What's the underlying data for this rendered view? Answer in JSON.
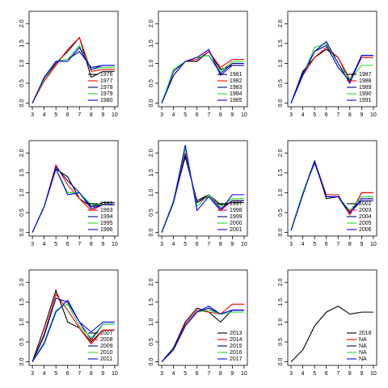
{
  "chart_data": [
    {
      "type": "line",
      "x": [
        3,
        4,
        5,
        6,
        7,
        8,
        9,
        10
      ],
      "xlim": [
        2.72,
        10.28
      ],
      "xticks": [
        3,
        4,
        5,
        6,
        7,
        8,
        9,
        10
      ],
      "ylim": [
        -0.09,
        2.31
      ],
      "yticks": [
        {
          "value": 0,
          "label": "0.0"
        },
        0.5,
        {
          "value": 1,
          "label": "1.0"
        },
        1.5,
        {
          "value": 2,
          "label": "2.0"
        }
      ],
      "legend": "bottomright",
      "series": [
        {
          "name": "1976",
          "color": "#000000",
          "values": [
            0,
            0.6,
            1.0,
            1.3,
            1.65,
            0.65,
            0.8,
            0.8
          ]
        },
        {
          "name": "1977",
          "color": "#ff0000",
          "values": [
            0,
            0.55,
            0.95,
            1.35,
            1.65,
            0.8,
            0.85,
            0.85
          ]
        },
        {
          "name": "1978",
          "color": "#00008b",
          "values": [
            0,
            0.65,
            1.05,
            1.1,
            1.3,
            0.9,
            0.95,
            0.95
          ]
        },
        {
          "name": "1979",
          "color": "#22dd22",
          "values": [
            0,
            0.6,
            1.05,
            1.1,
            1.45,
            0.85,
            0.9,
            0.9
          ]
        },
        {
          "name": "1980",
          "color": "#0000ff",
          "values": [
            0,
            0.65,
            1.05,
            1.05,
            1.4,
            0.85,
            0.95,
            0.95
          ]
        }
      ]
    },
    {
      "type": "line",
      "x": [
        3,
        4,
        5,
        6,
        7,
        8,
        9,
        10
      ],
      "xlim": [
        2.72,
        10.28
      ],
      "xticks": [
        3,
        4,
        5,
        6,
        7,
        8,
        9,
        10
      ],
      "ylim": [
        -0.09,
        2.31
      ],
      "yticks": [
        {
          "value": 0,
          "label": "0.0"
        },
        0.5,
        {
          "value": 1,
          "label": "1.0"
        },
        1.5,
        {
          "value": 2,
          "label": "2.0"
        }
      ],
      "legend": "bottomright",
      "series": [
        {
          "name": "1981",
          "color": "#000000",
          "values": [
            0,
            0.7,
            1.05,
            1.05,
            1.3,
            0.85,
            0.95,
            0.95
          ]
        },
        {
          "name": "1982",
          "color": "#ff0000",
          "values": [
            0,
            0.7,
            1.05,
            1.1,
            1.3,
            0.9,
            1.1,
            1.1
          ]
        },
        {
          "name": "1983",
          "color": "#00008b",
          "values": [
            0,
            0.8,
            1.05,
            1.15,
            1.2,
            0.75,
            1.0,
            1.0
          ]
        },
        {
          "name": "1984",
          "color": "#22dd22",
          "values": [
            0,
            0.85,
            1.05,
            1.15,
            1.2,
            0.8,
            1.05,
            1.05
          ]
        },
        {
          "name": "1985",
          "color": "#0000ff",
          "values": [
            0,
            0.7,
            1.05,
            1.15,
            1.35,
            0.7,
            0.95,
            0.95
          ]
        }
      ]
    },
    {
      "type": "line",
      "x": [
        3,
        4,
        5,
        6,
        7,
        8,
        9,
        10
      ],
      "xlim": [
        2.72,
        10.28
      ],
      "xticks": [
        3,
        4,
        5,
        6,
        7,
        8,
        9,
        10
      ],
      "ylim": [
        -0.09,
        2.31
      ],
      "yticks": [
        {
          "value": 0,
          "label": "0.0"
        },
        0.5,
        {
          "value": 1,
          "label": "1.0"
        },
        1.5,
        {
          "value": 2,
          "label": "2.0"
        }
      ],
      "legend": "bottomright",
      "series": [
        {
          "name": "1987",
          "color": "#000000",
          "values": [
            0,
            0.8,
            1.15,
            1.35,
            1.15,
            0.55,
            1.15,
            1.15
          ]
        },
        {
          "name": "1988",
          "color": "#ff0000",
          "values": [
            0,
            0.7,
            1.15,
            1.4,
            1.15,
            0.6,
            1.15,
            1.15
          ]
        },
        {
          "name": "1989",
          "color": "#00008b",
          "values": [
            0,
            0.75,
            1.3,
            1.45,
            0.9,
            0.55,
            1.2,
            1.2
          ]
        },
        {
          "name": "1990",
          "color": "#22dd22",
          "values": [
            0,
            0.7,
            1.4,
            1.5,
            1.0,
            0.6,
            0.95,
            0.95
          ]
        },
        {
          "name": "1991",
          "color": "#0000ff",
          "values": [
            0,
            0.7,
            1.3,
            1.55,
            1.0,
            0.5,
            1.2,
            1.2
          ]
        }
      ]
    },
    {
      "type": "line",
      "x": [
        3,
        4,
        5,
        6,
        7,
        8,
        9,
        10
      ],
      "xlim": [
        2.72,
        10.28
      ],
      "xticks": [
        3,
        4,
        5,
        6,
        7,
        8,
        9,
        10
      ],
      "ylim": [
        -0.09,
        2.31
      ],
      "yticks": [
        {
          "value": 0,
          "label": "0.0"
        },
        0.5,
        {
          "value": 1,
          "label": "1.0"
        },
        1.5,
        {
          "value": 2,
          "label": "2.0"
        }
      ],
      "legend": "bottomright",
      "series": [
        {
          "name": "1992",
          "color": "#000000",
          "values": [
            0,
            0.65,
            1.6,
            1.4,
            0.85,
            0.65,
            0.75,
            0.75
          ]
        },
        {
          "name": "1993",
          "color": "#ff0000",
          "values": [
            0,
            0.65,
            1.7,
            1.2,
            0.85,
            0.55,
            0.7,
            0.7
          ]
        },
        {
          "name": "1994",
          "color": "#00008b",
          "values": [
            0,
            0.65,
            1.65,
            1.3,
            1.0,
            0.65,
            0.7,
            0.7
          ]
        },
        {
          "name": "1995",
          "color": "#22dd22",
          "values": [
            0,
            0.65,
            1.6,
            1.0,
            1.0,
            0.7,
            0.7,
            0.7
          ]
        },
        {
          "name": "1996",
          "color": "#0000ff",
          "values": [
            0,
            0.65,
            1.6,
            0.95,
            1.0,
            0.6,
            0.7,
            0.7
          ]
        }
      ]
    },
    {
      "type": "line",
      "x": [
        3,
        4,
        5,
        6,
        7,
        8,
        9,
        10
      ],
      "xlim": [
        2.72,
        10.28
      ],
      "xticks": [
        3,
        4,
        5,
        6,
        7,
        8,
        9,
        10
      ],
      "ylim": [
        -0.09,
        2.31
      ],
      "yticks": [
        {
          "value": 0,
          "label": "0.0"
        },
        0.5,
        {
          "value": 1,
          "label": "1.0"
        },
        1.5,
        {
          "value": 2,
          "label": "2.0"
        }
      ],
      "legend": "bottomright",
      "series": [
        {
          "name": "1997",
          "color": "#000000",
          "values": [
            0,
            0.8,
            1.9,
            0.8,
            0.95,
            0.7,
            0.75,
            0.75
          ]
        },
        {
          "name": "1998",
          "color": "#ff0000",
          "values": [
            0,
            0.8,
            2.0,
            0.75,
            0.9,
            0.55,
            0.8,
            0.8
          ]
        },
        {
          "name": "1999",
          "color": "#00008b",
          "values": [
            0,
            0.75,
            1.95,
            0.75,
            0.95,
            0.6,
            0.8,
            0.8
          ]
        },
        {
          "name": "2000",
          "color": "#22dd22",
          "values": [
            0,
            0.8,
            2.1,
            0.65,
            0.95,
            0.65,
            0.85,
            0.85
          ]
        },
        {
          "name": "2001",
          "color": "#0000ff",
          "values": [
            0,
            0.75,
            2.2,
            0.55,
            0.9,
            0.55,
            0.95,
            0.95
          ]
        }
      ]
    },
    {
      "type": "line",
      "x": [
        3,
        4,
        5,
        6,
        7,
        8,
        9,
        10
      ],
      "xlim": [
        2.72,
        10.28
      ],
      "xticks": [
        3,
        4,
        5,
        6,
        7,
        8,
        9,
        10
      ],
      "ylim": [
        -0.09,
        2.31
      ],
      "yticks": [
        {
          "value": 0,
          "label": "0.0"
        },
        0.5,
        {
          "value": 1,
          "label": "1.0"
        },
        1.5,
        {
          "value": 2,
          "label": "2.0"
        }
      ],
      "legend": "bottomright",
      "series": [
        {
          "name": "2002",
          "color": "#000000",
          "values": [
            0.05,
            0.95,
            1.8,
            0.85,
            0.9,
            0.45,
            1.0,
            1.0
          ]
        },
        {
          "name": "2003",
          "color": "#ff0000",
          "values": [
            0.05,
            1.0,
            1.8,
            0.95,
            0.95,
            0.45,
            1.0,
            1.0
          ]
        },
        {
          "name": "2004",
          "color": "#00008b",
          "values": [
            0.05,
            1.0,
            1.75,
            0.9,
            0.9,
            0.5,
            0.8,
            0.8
          ]
        },
        {
          "name": "2005",
          "color": "#22dd22",
          "values": [
            0.05,
            1.0,
            1.8,
            0.9,
            0.9,
            0.55,
            0.9,
            0.9
          ]
        },
        {
          "name": "2006",
          "color": "#0000ff",
          "values": [
            0.05,
            0.95,
            1.8,
            0.9,
            0.9,
            0.5,
            0.85,
            0.85
          ]
        }
      ]
    },
    {
      "type": "line",
      "x": [
        3,
        4,
        5,
        6,
        7,
        8,
        9,
        10
      ],
      "xlim": [
        2.72,
        10.28
      ],
      "xticks": [
        3,
        4,
        5,
        6,
        7,
        8,
        9,
        10
      ],
      "ylim": [
        -0.09,
        2.31
      ],
      "yticks": [
        {
          "value": 0,
          "label": "0.0"
        },
        0.5,
        {
          "value": 1,
          "label": "1.0"
        },
        1.5,
        {
          "value": 2,
          "label": "2.0"
        }
      ],
      "legend": "bottomright",
      "series": [
        {
          "name": "2007",
          "color": "#000000",
          "values": [
            0,
            0.85,
            1.8,
            1.0,
            0.85,
            0.5,
            0.8,
            0.8
          ]
        },
        {
          "name": "2008",
          "color": "#ff0000",
          "values": [
            0,
            0.7,
            1.7,
            1.3,
            0.85,
            0.45,
            0.8,
            0.8
          ]
        },
        {
          "name": "2009",
          "color": "#00008b",
          "values": [
            0,
            0.65,
            1.6,
            1.5,
            1.0,
            0.55,
            0.95,
            0.95
          ]
        },
        {
          "name": "2010",
          "color": "#22dd22",
          "values": [
            0,
            0.5,
            1.3,
            1.45,
            0.9,
            0.6,
            0.95,
            0.95
          ]
        },
        {
          "name": "2011",
          "color": "#0000ff",
          "values": [
            0,
            0.45,
            1.25,
            1.55,
            1.0,
            0.75,
            1.0,
            1.0
          ]
        }
      ]
    },
    {
      "type": "line",
      "x": [
        3,
        4,
        5,
        6,
        7,
        8,
        9,
        10
      ],
      "xlim": [
        2.72,
        10.28
      ],
      "xticks": [
        3,
        4,
        5,
        6,
        7,
        8,
        9,
        10
      ],
      "ylim": [
        -0.09,
        2.31
      ],
      "yticks": [
        {
          "value": 0,
          "label": "0.0"
        },
        0.5,
        {
          "value": 1,
          "label": "1.0"
        },
        1.5,
        {
          "value": 2,
          "label": "2.0"
        }
      ],
      "legend": "bottomright",
      "series": [
        {
          "name": "2013",
          "color": "#000000",
          "values": [
            0,
            0.35,
            1.0,
            1.35,
            1.25,
            1.0,
            1.3,
            1.3
          ]
        },
        {
          "name": "2014",
          "color": "#ff0000",
          "values": [
            0,
            0.3,
            0.95,
            1.3,
            1.25,
            1.2,
            1.45,
            1.45
          ]
        },
        {
          "name": "2015",
          "color": "#00008b",
          "values": [
            0,
            0.3,
            0.9,
            1.25,
            1.35,
            1.2,
            1.3,
            1.3
          ]
        },
        {
          "name": "2016",
          "color": "#22dd22",
          "values": [
            0,
            0.3,
            0.9,
            1.25,
            1.3,
            1.2,
            1.25,
            1.25
          ]
        },
        {
          "name": "2017",
          "color": "#0000ff",
          "values": [
            0,
            0.3,
            0.9,
            1.25,
            1.4,
            1.2,
            1.3,
            1.3
          ]
        }
      ]
    },
    {
      "type": "line",
      "x": [
        3,
        4,
        5,
        6,
        7,
        8,
        9,
        10
      ],
      "xlim": [
        2.72,
        10.28
      ],
      "xticks": [
        3,
        4,
        5,
        6,
        7,
        8,
        9,
        10
      ],
      "ylim": [
        -0.09,
        2.31
      ],
      "yticks": [
        {
          "value": 0,
          "label": "0.0"
        },
        0.5,
        {
          "value": 1,
          "label": "1.0"
        },
        1.5,
        {
          "value": 2,
          "label": "2.0"
        }
      ],
      "legend": "bottomright",
      "series": [
        {
          "name": "2018",
          "color": "#000000",
          "values": [
            0,
            0.3,
            0.9,
            1.25,
            1.4,
            1.2,
            1.25,
            1.25
          ]
        },
        {
          "name": "NA",
          "color": "#ff0000",
          "values": [
            null,
            null,
            null,
            null,
            null,
            null,
            null,
            null
          ]
        },
        {
          "name": "NA",
          "color": "#00008b",
          "values": [
            null,
            null,
            null,
            null,
            null,
            null,
            null,
            null
          ]
        },
        {
          "name": "NA",
          "color": "#22dd22",
          "values": [
            null,
            null,
            null,
            null,
            null,
            null,
            null,
            null
          ]
        },
        {
          "name": "NA",
          "color": "#0000ff",
          "values": [
            null,
            null,
            null,
            null,
            null,
            null,
            null,
            null
          ]
        }
      ]
    }
  ]
}
